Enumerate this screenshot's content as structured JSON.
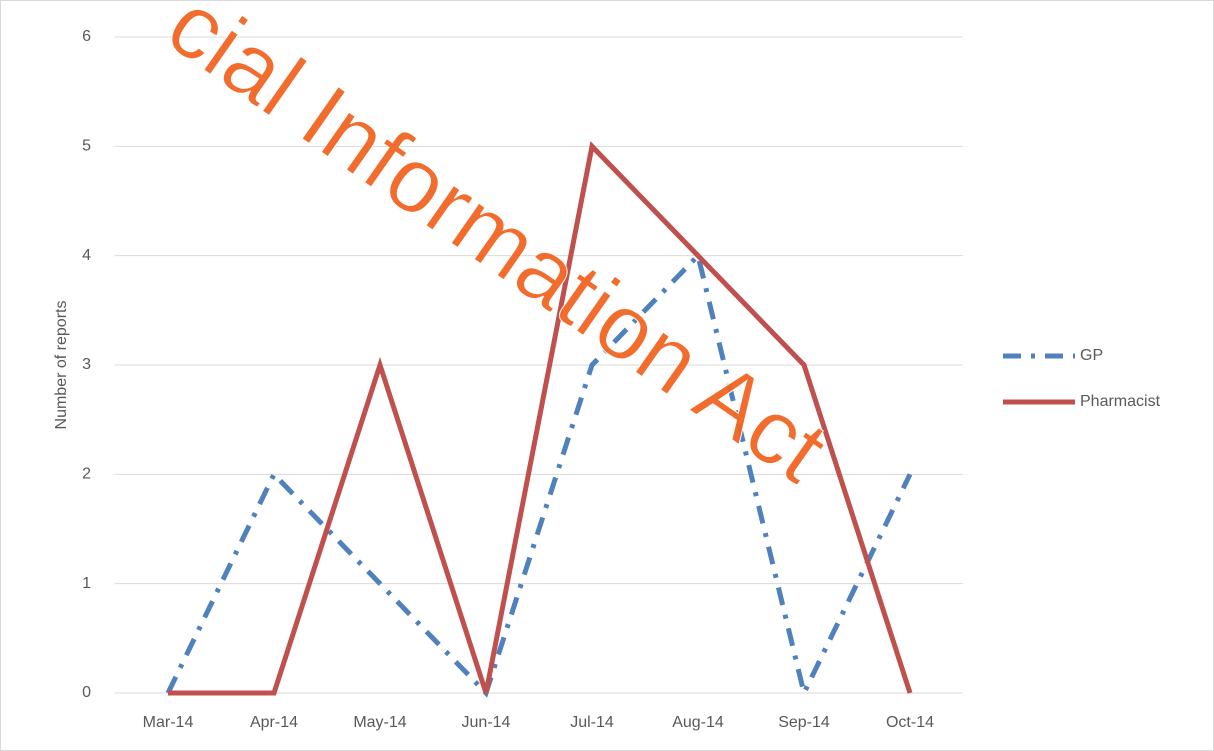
{
  "chart_data": {
    "type": "line",
    "y_label": "Number of reports",
    "categories": [
      "Mar-14",
      "Apr-14",
      "May-14",
      "Jun-14",
      "Jul-14",
      "Aug-14",
      "Sep-14",
      "Oct-14"
    ],
    "series": [
      {
        "name": "GP",
        "color": "#4f81bd",
        "dash": "dash-dot",
        "values": [
          0,
          2,
          1,
          0,
          3,
          4,
          0,
          2
        ]
      },
      {
        "name": "Pharmacist",
        "color": "#c0504d",
        "dash": "solid",
        "values": [
          0,
          0,
          3,
          0,
          5,
          4,
          3,
          0
        ]
      }
    ],
    "ylim": [
      0,
      6
    ],
    "yticks": [
      0,
      1,
      2,
      3,
      4,
      5,
      6
    ],
    "grid": true,
    "legend": "right",
    "watermark": "cial Information Act"
  }
}
